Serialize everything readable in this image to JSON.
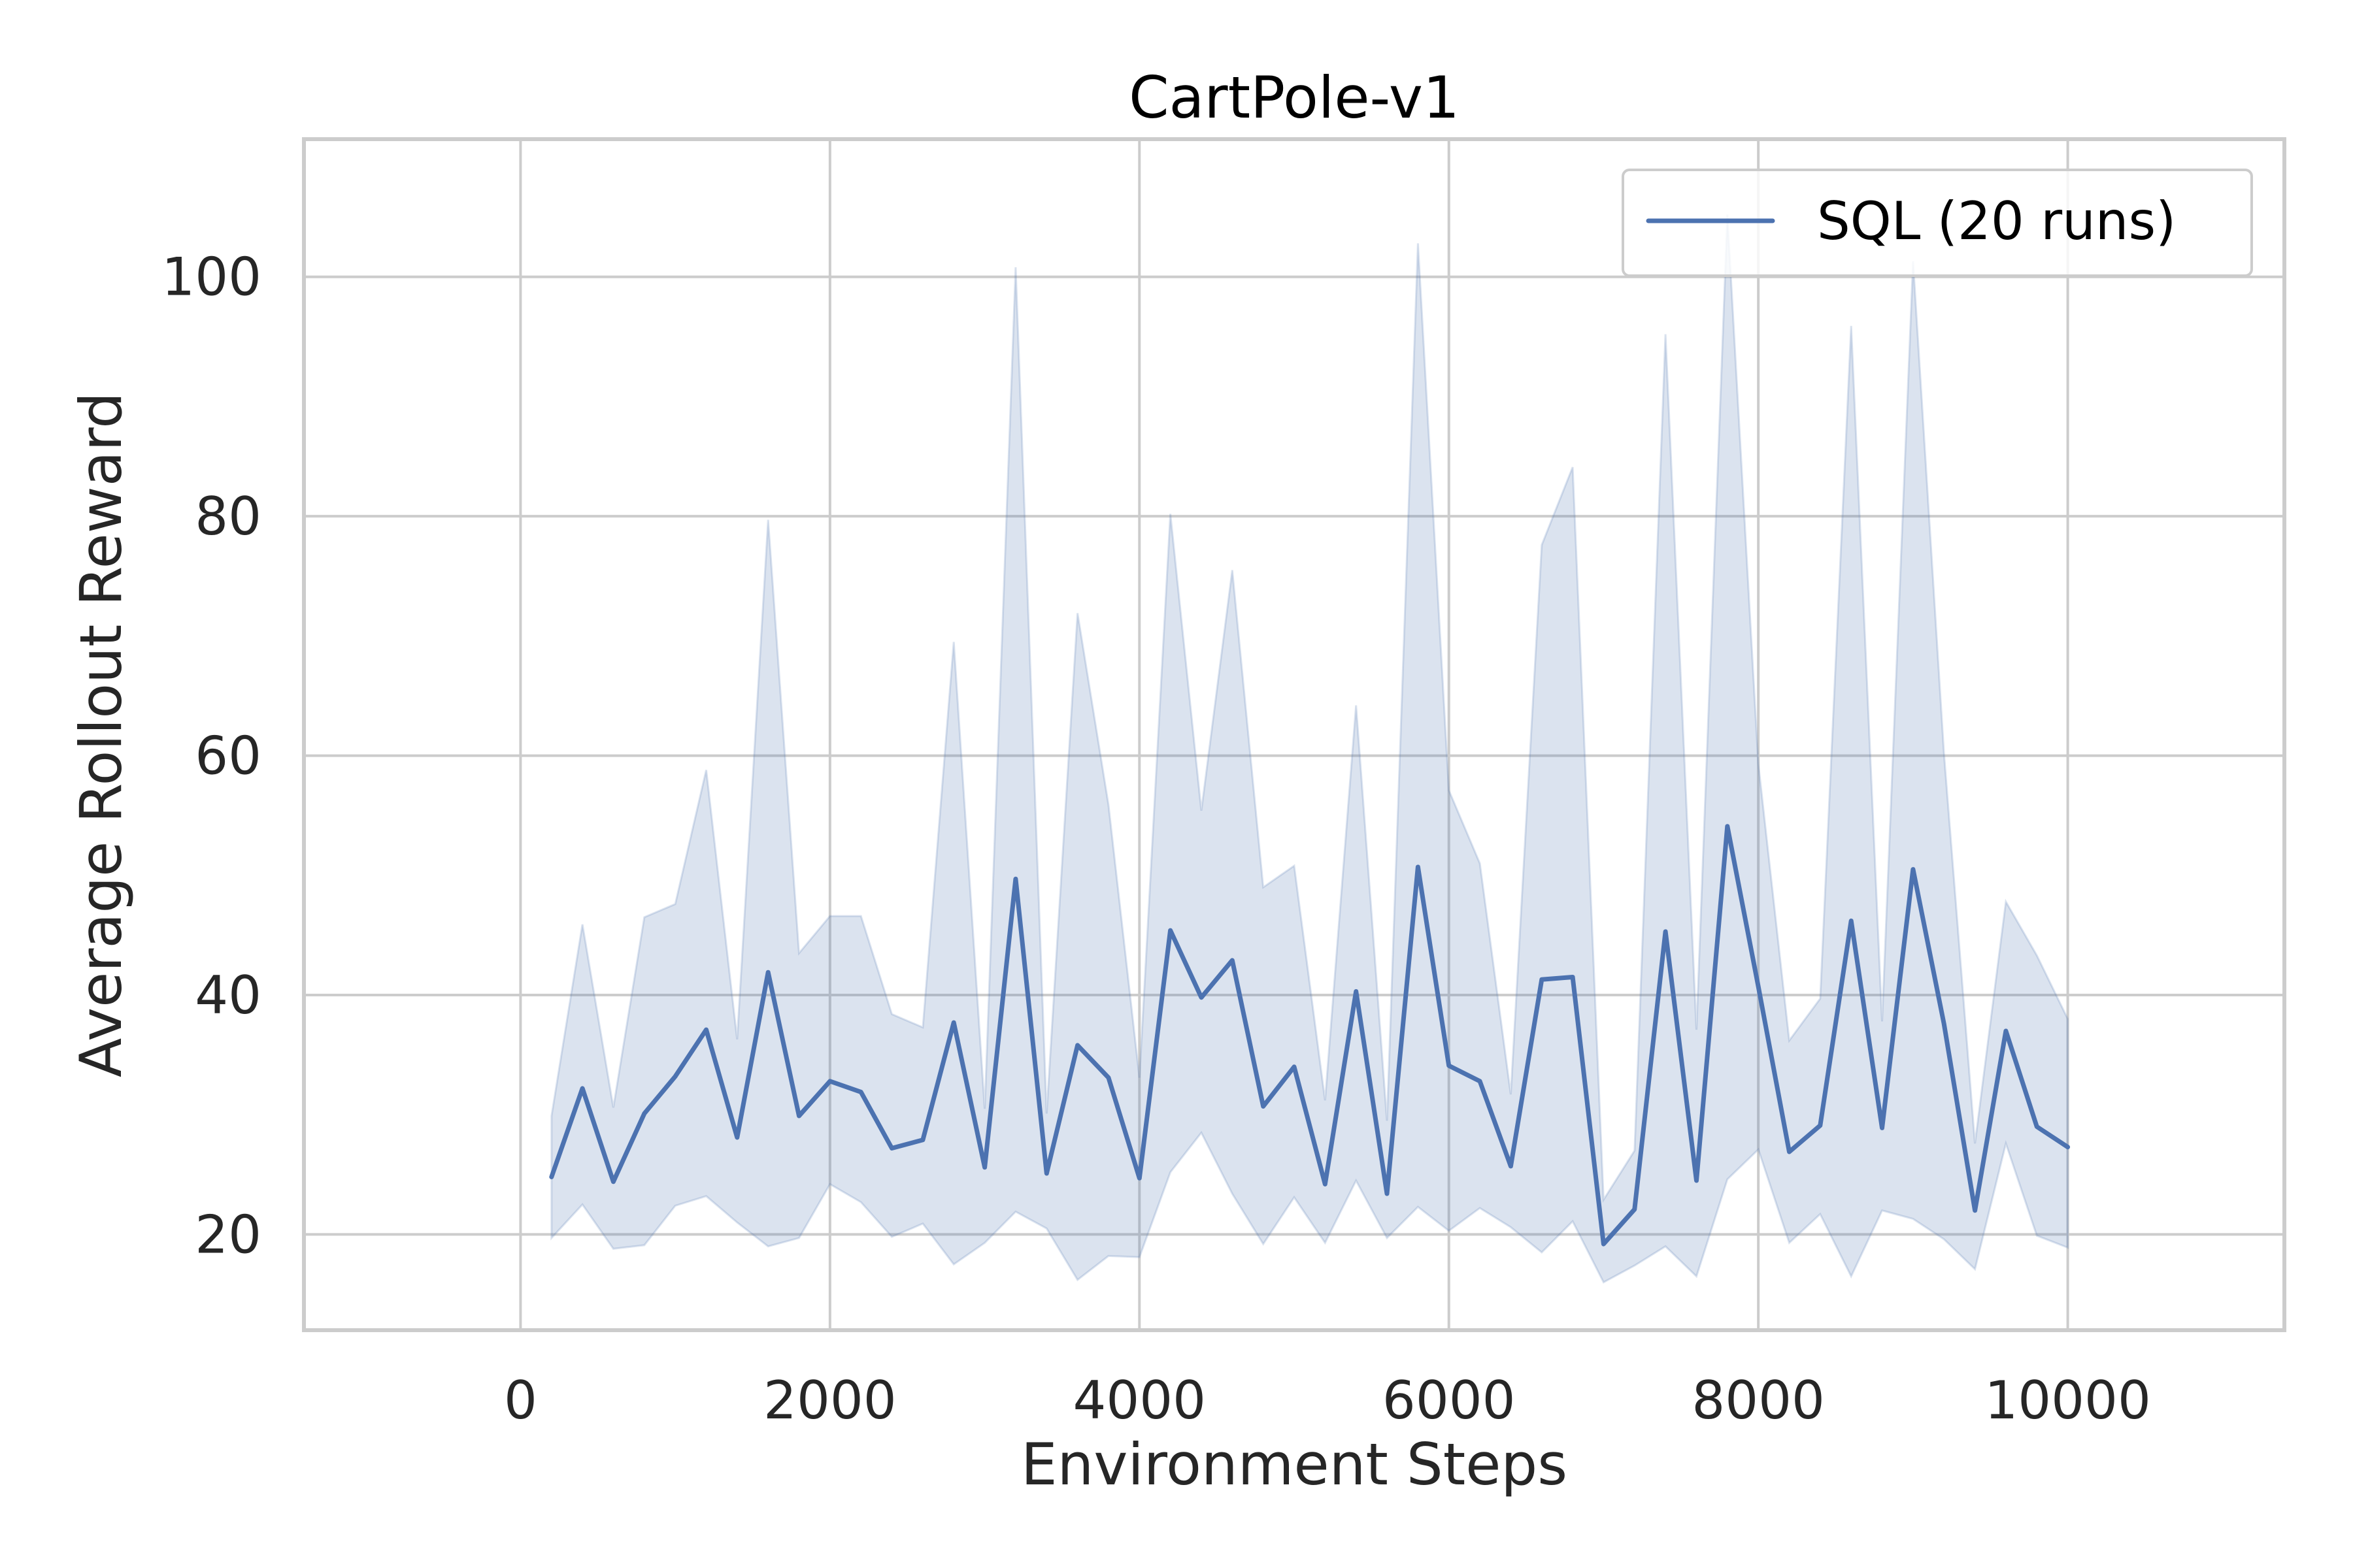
{
  "chart_data": {
    "type": "line",
    "title": "CartPole-v1",
    "xlabel": "Environment Steps",
    "ylabel": "Average Rollout Reward",
    "xlim": [
      -1400,
      11400
    ],
    "ylim": [
      12,
      111.5
    ],
    "xticks": [
      0,
      2000,
      4000,
      6000,
      8000,
      10000
    ],
    "yticks": [
      20,
      40,
      60,
      80,
      100
    ],
    "xtick_labels": [
      "0",
      "2000",
      "4000",
      "6000",
      "8000",
      "10000"
    ],
    "ytick_labels": [
      "20",
      "40",
      "60",
      "80",
      "100"
    ],
    "grid": true,
    "legend_position": "top-right",
    "colors": {
      "line": "#4c72b0",
      "band": "#4c72b0",
      "grid": "#cccccc",
      "spine": "#cccccc"
    },
    "x": [
      200,
      400,
      600,
      800,
      1000,
      1200,
      1400,
      1600,
      1800,
      2000,
      2200,
      2400,
      2600,
      2800,
      3000,
      3200,
      3400,
      3600,
      3800,
      4000,
      4200,
      4400,
      4600,
      4800,
      5000,
      5200,
      5400,
      5600,
      5800,
      6000,
      6200,
      6400,
      6600,
      6800,
      7000,
      7200,
      7400,
      7600,
      7800,
      8000,
      8200,
      8400,
      8600,
      8800,
      9000,
      9200,
      9400,
      9600,
      9800,
      10000
    ],
    "series": [
      {
        "name": "SQL (20 runs)",
        "values": [
          24.8,
          32.2,
          24.4,
          30.1,
          33.2,
          37.1,
          28.1,
          41.9,
          29.9,
          32.8,
          31.9,
          27.2,
          27.9,
          37.7,
          25.6,
          49.7,
          25.1,
          35.8,
          33.1,
          24.7,
          45.4,
          39.8,
          42.9,
          30.7,
          34,
          24.2,
          40.3,
          23.4,
          50.7,
          34.1,
          32.8,
          25.7,
          41.3,
          41.5,
          19.2,
          22.1,
          45.3,
          24.5,
          54.1,
          40.7,
          26.9,
          29.1,
          46.2,
          28.9,
          50.5,
          37.6,
          22,
          37,
          29,
          27.3
        ],
        "upper": [
          29.9,
          45.9,
          30.6,
          46.5,
          47.6,
          58.8,
          36.3,
          79.7,
          43.5,
          46.6,
          46.6,
          38.4,
          37.3,
          69.5,
          30.5,
          100.8,
          30.1,
          71.9,
          55.9,
          33.1,
          80.2,
          55.4,
          75.5,
          49,
          50.8,
          31.2,
          64.2,
          29.5,
          102.8,
          57.1,
          51,
          31.7,
          77.6,
          84.1,
          22.9,
          27,
          95.2,
          37.1,
          105.2,
          59.3,
          36.2,
          39.7,
          95.9,
          37.8,
          101.3,
          60.2,
          27.6,
          47.8,
          43.3,
          38
        ],
        "lower": [
          19.7,
          22.5,
          18.8,
          19.1,
          22.4,
          23.2,
          21,
          19,
          19.7,
          24.2,
          22.7,
          19.8,
          20.9,
          17.5,
          19.3,
          21.9,
          20.5,
          16.2,
          18.2,
          18.1,
          25.2,
          28.5,
          23.4,
          19.2,
          23.1,
          19.3,
          24.5,
          19.7,
          22.3,
          20.3,
          22.2,
          20.6,
          18.5,
          21.1,
          16,
          17.4,
          19,
          16.5,
          24.6,
          27.1,
          19.3,
          21.7,
          16.5,
          22,
          21.3,
          19.6,
          17.1,
          27.6,
          19.9,
          18.9
        ]
      }
    ]
  }
}
